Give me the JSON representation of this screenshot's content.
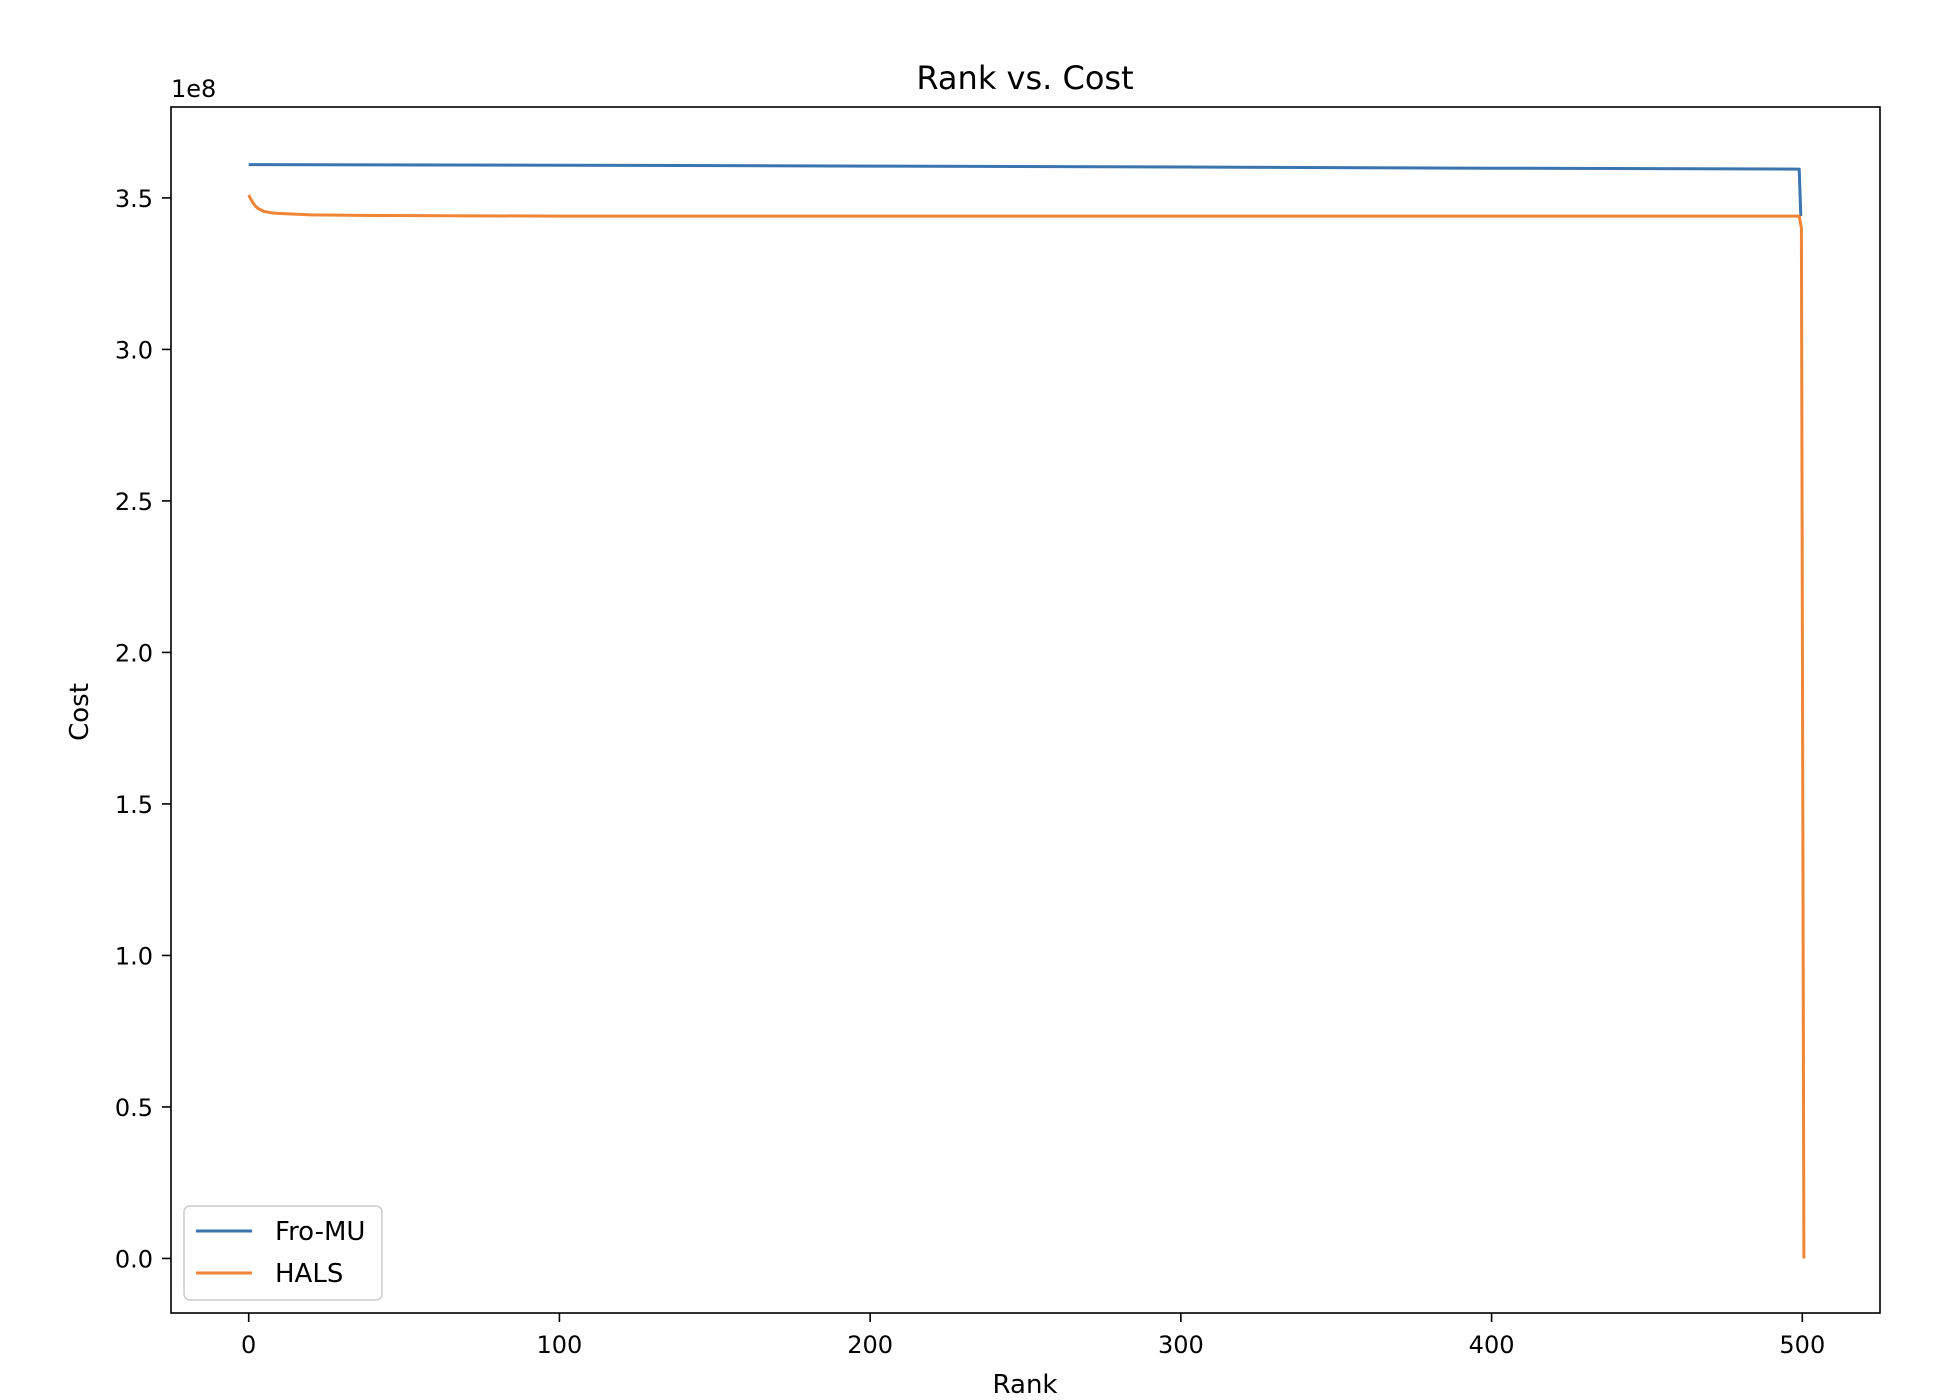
{
  "chart_data": {
    "type": "line",
    "title": "Rank vs. Cost",
    "xlabel": "Rank",
    "ylabel": "Cost",
    "y_offset_label": "1e8",
    "xlim": [
      -25,
      525
    ],
    "ylim": [
      -0.18,
      3.8
    ],
    "x_ticks": [
      0,
      100,
      200,
      300,
      400,
      500
    ],
    "x_tick_labels": [
      "0",
      "100",
      "200",
      "300",
      "400",
      "500"
    ],
    "y_ticks": [
      0.0,
      0.5,
      1.0,
      1.5,
      2.0,
      2.5,
      3.0,
      3.5
    ],
    "y_tick_labels": [
      "0.0",
      "0.5",
      "1.0",
      "1.5",
      "2.0",
      "2.5",
      "3.0",
      "3.5"
    ],
    "grid": false,
    "legend_position": "lower-left",
    "series": [
      {
        "name": "Fro-MU",
        "color": "#3a75b0",
        "x": [
          0,
          100,
          200,
          300,
          400,
          499,
          499.5
        ],
        "y": [
          3.61,
          3.608,
          3.605,
          3.602,
          3.598,
          3.595,
          3.44
        ]
      },
      {
        "name": "HALS",
        "color": "#ef8535",
        "x": [
          0,
          1,
          2,
          3,
          5,
          8,
          12,
          20,
          40,
          100,
          200,
          300,
          400,
          499,
          499.7,
          500.5
        ],
        "y": [
          3.51,
          3.49,
          3.475,
          3.465,
          3.455,
          3.45,
          3.448,
          3.444,
          3.442,
          3.44,
          3.44,
          3.44,
          3.44,
          3.44,
          3.4,
          0.0
        ]
      }
    ]
  }
}
